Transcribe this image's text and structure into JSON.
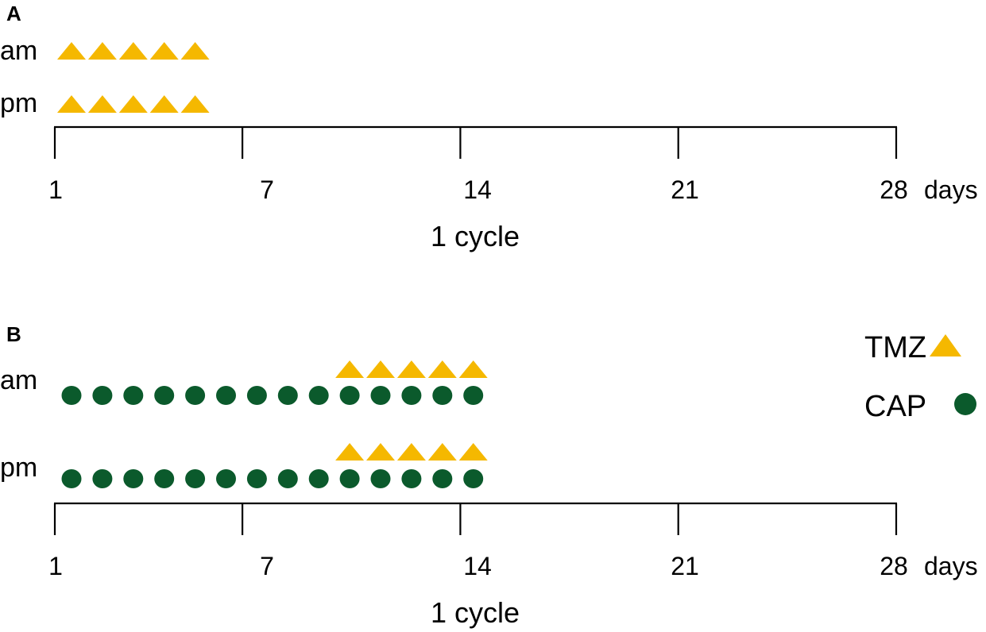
{
  "colors": {
    "tmz": "#f5b800",
    "cap": "#0b5a2c",
    "axis": "#000000"
  },
  "legend": [
    {
      "label": "TMZ",
      "shape": "triangle",
      "color": "#f5b800"
    },
    {
      "label": "CAP",
      "shape": "circle",
      "color": "#0b5a2c"
    }
  ],
  "panels": [
    {
      "letter": "A",
      "rows": [
        {
          "label": "am",
          "tmz_days": [
            1,
            2,
            3,
            4,
            5
          ],
          "cap_days": []
        },
        {
          "label": "pm",
          "tmz_days": [
            1,
            2,
            3,
            4,
            5
          ],
          "cap_days": []
        }
      ],
      "axis": {
        "ticks": [
          "1",
          "7",
          "14",
          "21",
          "28"
        ],
        "unit": "days",
        "caption": "1 cycle"
      }
    },
    {
      "letter": "B",
      "rows": [
        {
          "label": "am",
          "tmz_days": [
            10,
            11,
            12,
            13,
            14
          ],
          "cap_days": [
            1,
            2,
            3,
            4,
            5,
            6,
            7,
            8,
            9,
            10,
            11,
            12,
            13,
            14
          ]
        },
        {
          "label": "pm",
          "tmz_days": [
            10,
            11,
            12,
            13,
            14
          ],
          "cap_days": [
            1,
            2,
            3,
            4,
            5,
            6,
            7,
            8,
            9,
            10,
            11,
            12,
            13,
            14
          ]
        }
      ],
      "axis": {
        "ticks": [
          "1",
          "7",
          "14",
          "21",
          "28"
        ],
        "unit": "days",
        "caption": "1 cycle"
      }
    }
  ]
}
